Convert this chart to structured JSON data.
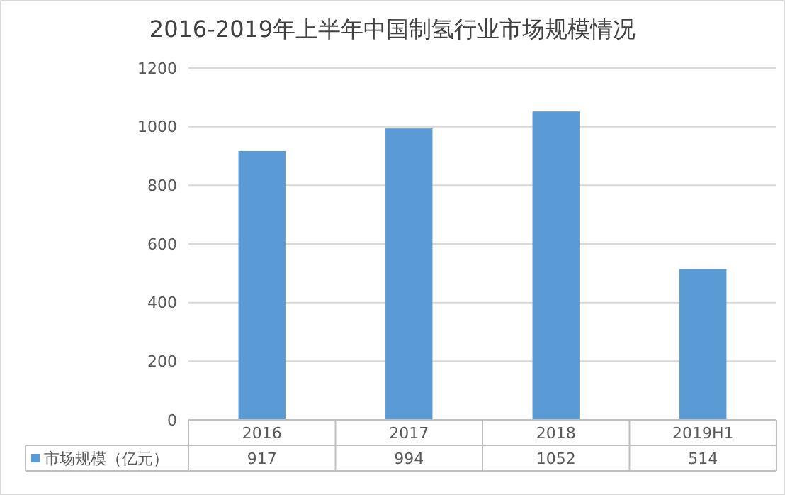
{
  "chart_data": {
    "type": "bar",
    "title": "2016-2019年上半年中国制氢行业市场规模情况",
    "categories": [
      "2016",
      "2017",
      "2018",
      "2019H1"
    ],
    "series": [
      {
        "name": "市场规模（亿元）",
        "color": "#5b9bd5",
        "values": [
          917,
          994,
          1052,
          514
        ]
      }
    ],
    "ylim": [
      0,
      1200
    ],
    "yticks": [
      0,
      200,
      400,
      600,
      800,
      1000,
      1200
    ],
    "grid": "y",
    "legend": "bottom",
    "data_labels": true
  }
}
